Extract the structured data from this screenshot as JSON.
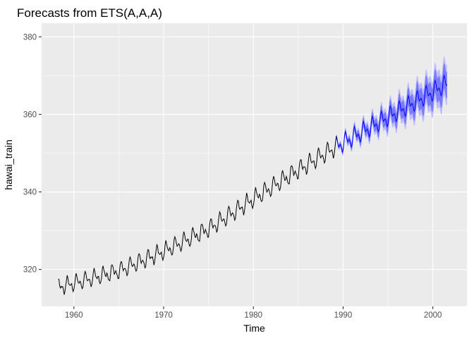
{
  "chart_data": {
    "type": "line",
    "title": "Forecasts from ETS(A,A,A)",
    "xlabel": "Time",
    "ylabel": "hawai_train",
    "xlim": [
      1956.4,
      2003.8
    ],
    "ylim": [
      310.5,
      383.5
    ],
    "x_ticks": [
      1960,
      1970,
      1980,
      1990,
      2000
    ],
    "x_tick_labels": [
      "1960",
      "1970",
      "1980",
      "1990",
      "2000"
    ],
    "y_ticks": [
      320,
      340,
      360,
      380
    ],
    "y_tick_labels": [
      "320",
      "340",
      "360",
      "380"
    ],
    "grid": true,
    "legend": "none",
    "colors": {
      "panel": "#ebebeb",
      "grid": "#ffffff",
      "history_line": "#000000",
      "forecast_line": "#0000ff",
      "band_80": "#7a7aff",
      "band_95": "#bcbcff"
    },
    "history": {
      "start": 1958.25,
      "end": 1989.25,
      "step": 0.0833333,
      "trend_points": [
        [
          1958.25,
          315.3
        ],
        [
          1960,
          316.3
        ],
        [
          1965,
          319.5
        ],
        [
          1970,
          324.5
        ],
        [
          1975,
          330.3
        ],
        [
          1980,
          338.0
        ],
        [
          1985,
          345.5
        ],
        [
          1989.25,
          351.5
        ]
      ],
      "seasonal_amplitude": [
        [
          1958.25,
          2.8
        ],
        [
          1989.25,
          3.2
        ]
      ]
    },
    "forecast": {
      "start": 1989.25,
      "end": 2001.6,
      "step": 0.0833333,
      "trend_points": [
        [
          1989.25,
          351.5
        ],
        [
          2001.6,
          367.8
        ]
      ],
      "seasonal_amplitude": 3.2,
      "pi80_halfwidth": [
        [
          1989.25,
          0.5
        ],
        [
          2001.6,
          3.4
        ]
      ],
      "pi95_halfwidth": [
        [
          1989.25,
          0.8
        ],
        [
          2001.6,
          5.2
        ]
      ]
    }
  }
}
